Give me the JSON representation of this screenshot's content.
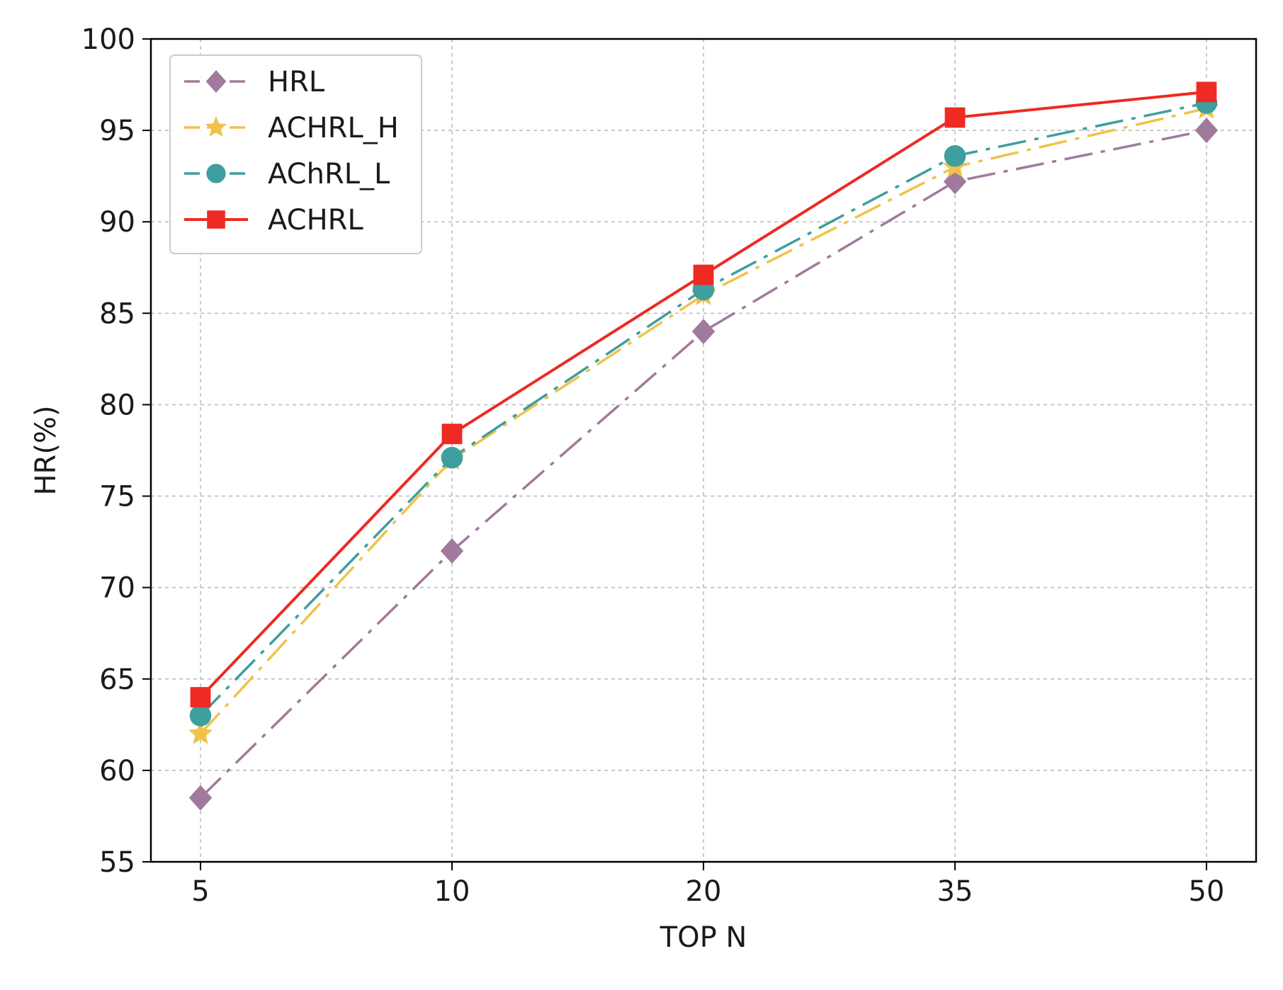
{
  "chart_data": {
    "type": "line",
    "title": "",
    "xlabel": "TOP N",
    "ylabel": "HR(%)",
    "categories": [
      "5",
      "10",
      "20",
      "35",
      "50"
    ],
    "ylim": [
      55,
      100
    ],
    "yticks": [
      55,
      60,
      65,
      70,
      75,
      80,
      85,
      90,
      95,
      100
    ],
    "grid": true,
    "legend_position": "top-left",
    "series": [
      {
        "name": "HRL",
        "values": [
          58.5,
          72.0,
          84.0,
          92.2,
          95.0
        ],
        "color": "#a07a9c",
        "marker": "diamond",
        "line_style": "dash-dot"
      },
      {
        "name": "ACHRL_H",
        "values": [
          62.0,
          77.0,
          86.0,
          93.0,
          96.2
        ],
        "color": "#f0c24a",
        "marker": "star",
        "line_style": "dash-dot"
      },
      {
        "name": "AChRL_L",
        "values": [
          63.0,
          77.1,
          86.3,
          93.6,
          96.5
        ],
        "color": "#3f9e9e",
        "marker": "circle",
        "line_style": "dash-dot"
      },
      {
        "name": "ACHRL",
        "values": [
          64.0,
          78.4,
          87.1,
          95.7,
          97.1
        ],
        "color": "#ee2a22",
        "marker": "square",
        "line_style": "solid"
      }
    ]
  }
}
